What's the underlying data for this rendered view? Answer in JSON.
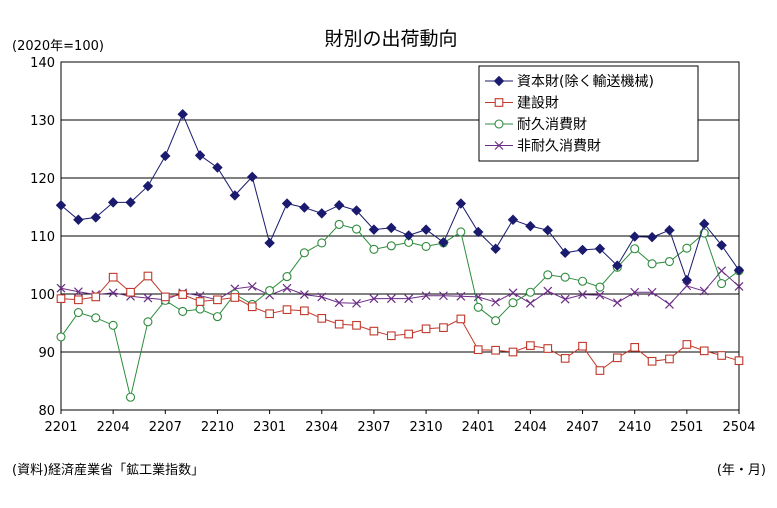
{
  "chart_data": {
    "type": "line",
    "title": "財別の出荷動向",
    "unit_label": "(2020年=100)",
    "source": "(資料)経済産業省「鉱工業指数」",
    "xlabel": "(年・月)",
    "ylim": [
      80,
      140
    ],
    "yticks": [
      "80",
      "90",
      "100",
      "110",
      "120",
      "130",
      "140"
    ],
    "grid": true,
    "legend_position": "top-right",
    "x_tick_labels": [
      "2201",
      "2204",
      "2207",
      "2210",
      "2301",
      "2304",
      "2307",
      "2310",
      "2401",
      "2404",
      "2407",
      "2410",
      "2501",
      "2504"
    ],
    "x": [
      "2201",
      "2202",
      "2203",
      "2204",
      "2205",
      "2206",
      "2207",
      "2208",
      "2209",
      "2210",
      "2211",
      "2212",
      "2301",
      "2302",
      "2303",
      "2304",
      "2305",
      "2306",
      "2307",
      "2308",
      "2309",
      "2310",
      "2311",
      "2312",
      "2401",
      "2402",
      "2403",
      "2404",
      "2405",
      "2406",
      "2407",
      "2408",
      "2409",
      "2410",
      "2411",
      "2412",
      "2501",
      "2502",
      "2503",
      "2504"
    ],
    "series": [
      {
        "name": "資本財(除く輸送機械)",
        "color": "#1a1a6e",
        "marker": "diamond",
        "values": [
          115.3,
          112.8,
          113.2,
          115.8,
          115.8,
          118.6,
          123.8,
          131.0,
          123.9,
          121.8,
          117.0,
          120.2,
          108.8,
          115.6,
          114.9,
          113.9,
          115.3,
          114.4,
          111.1,
          111.4,
          110.1,
          111.1,
          108.9,
          115.6,
          110.7,
          107.8,
          112.8,
          111.7,
          111.0,
          107.1,
          107.6,
          107.8,
          104.9,
          109.9,
          109.8,
          111.0,
          102.4,
          112.1,
          108.4,
          104.1
        ]
      },
      {
        "name": "建設財",
        "color": "#c0392b",
        "marker": "square",
        "values": [
          99.2,
          99.0,
          99.5,
          102.9,
          100.3,
          103.1,
          99.5,
          99.9,
          98.7,
          99.0,
          99.4,
          97.8,
          96.6,
          97.3,
          97.1,
          95.8,
          94.8,
          94.6,
          93.6,
          92.8,
          93.1,
          94.0,
          94.2,
          95.7,
          90.4,
          90.3,
          90.0,
          91.1,
          90.6,
          88.9,
          91.0,
          86.8,
          89.0,
          90.8,
          88.4,
          88.8,
          91.3,
          90.2,
          89.4,
          88.5
        ]
      },
      {
        "name": "耐久消費財",
        "color": "#2e8b3d",
        "marker": "circle",
        "values": [
          92.6,
          96.8,
          95.9,
          94.6,
          82.2,
          95.2,
          98.9,
          97.0,
          97.4,
          96.1,
          100.0,
          98.2,
          100.6,
          103.0,
          107.1,
          108.8,
          112.0,
          111.2,
          107.7,
          108.3,
          108.9,
          108.2,
          108.8,
          110.7,
          97.7,
          95.4,
          98.5,
          100.3,
          103.3,
          102.9,
          102.2,
          101.2,
          104.6,
          107.8,
          105.2,
          105.6,
          107.9,
          110.5,
          101.8,
          104.0
        ]
      },
      {
        "name": "非耐久消費財",
        "color": "#6b2d86",
        "marker": "x",
        "values": [
          101.0,
          100.4,
          99.9,
          100.2,
          99.6,
          99.3,
          99.0,
          100.2,
          99.7,
          99.0,
          100.9,
          101.3,
          99.8,
          101.0,
          99.9,
          99.5,
          98.5,
          98.4,
          99.2,
          99.2,
          99.2,
          99.7,
          99.7,
          99.6,
          99.5,
          98.6,
          100.2,
          98.4,
          100.5,
          99.1,
          99.9,
          99.8,
          98.5,
          100.3,
          100.3,
          98.2,
          101.4,
          100.5,
          104.0,
          101.3
        ]
      }
    ]
  }
}
